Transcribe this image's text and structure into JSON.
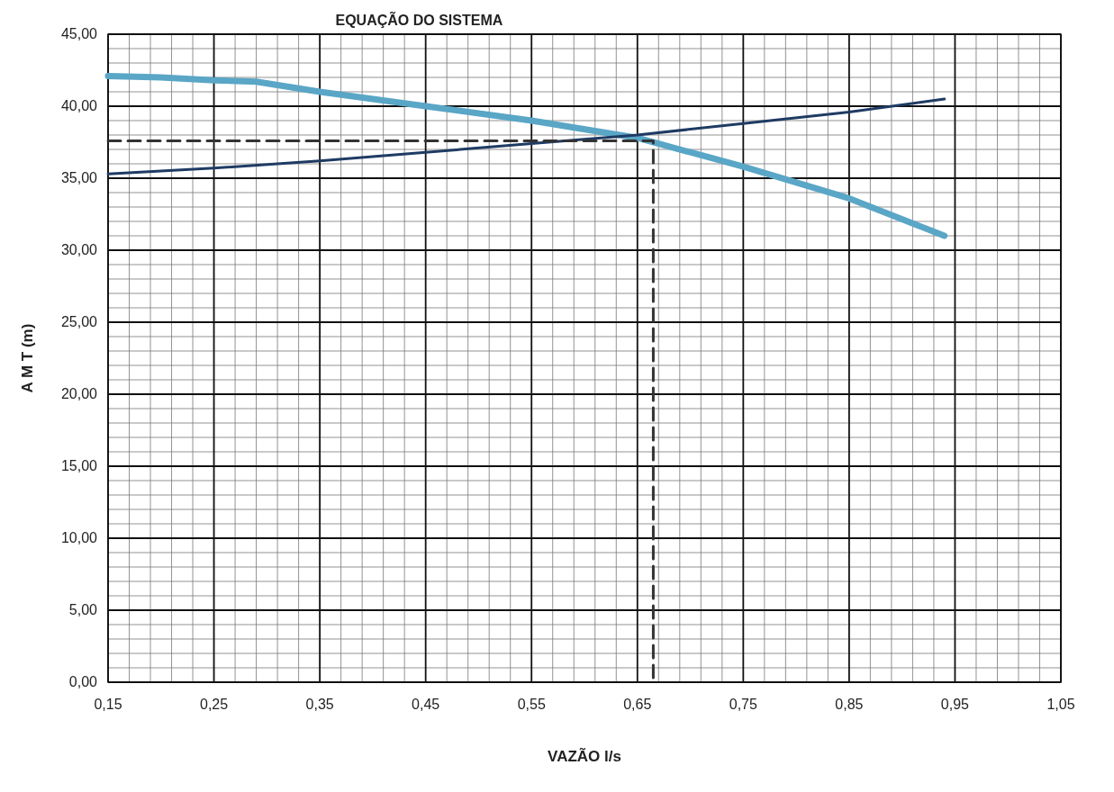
{
  "chart_data": {
    "type": "line",
    "title": "EQUAÇÃO DO SISTEMA",
    "xlabel": "VAZÃO l/s",
    "ylabel": "A M T (m)",
    "xlim": [
      0.15,
      1.05
    ],
    "xticks": [
      {
        "value": 0.15,
        "label": "0,15"
      },
      {
        "value": 0.25,
        "label": "0,25"
      },
      {
        "value": 0.35,
        "label": "0,35"
      },
      {
        "value": 0.45,
        "label": "0,45"
      },
      {
        "value": 0.55,
        "label": "0,55"
      },
      {
        "value": 0.65,
        "label": "0,65"
      },
      {
        "value": 0.75,
        "label": "0,75"
      },
      {
        "value": 0.85,
        "label": "0,85"
      },
      {
        "value": 0.95,
        "label": "0,95"
      },
      {
        "value": 1.05,
        "label": "1,05"
      }
    ],
    "ylim": [
      0,
      45
    ],
    "yticks": [
      {
        "value": 0,
        "label": "0,00"
      },
      {
        "value": 5,
        "label": "5,00"
      },
      {
        "value": 10,
        "label": "10,00"
      },
      {
        "value": 15,
        "label": "15,00"
      },
      {
        "value": 20,
        "label": "20,00"
      },
      {
        "value": 25,
        "label": "25,00"
      },
      {
        "value": 30,
        "label": "30,00"
      },
      {
        "value": 35,
        "label": "35,00"
      },
      {
        "value": 40,
        "label": "40,00"
      },
      {
        "value": 45,
        "label": "45,00"
      }
    ],
    "grid": true,
    "series": [
      {
        "color": "#5aa6c6",
        "x": [
          0.15,
          0.2,
          0.25,
          0.29,
          0.35,
          0.45,
          0.55,
          0.65,
          0.75,
          0.85,
          0.94
        ],
        "values": [
          42.1,
          42.0,
          41.8,
          41.7,
          41.0,
          40.0,
          39.0,
          37.8,
          35.8,
          33.6,
          31.0
        ]
      },
      {
        "color": "#1f3b63",
        "x": [
          0.15,
          0.25,
          0.35,
          0.45,
          0.55,
          0.65,
          0.75,
          0.85,
          0.94
        ],
        "values": [
          35.3,
          35.7,
          36.2,
          36.8,
          37.4,
          38.0,
          38.8,
          39.6,
          40.5
        ]
      },
      {
        "color": "#333333",
        "line_style": "dashed",
        "x": [
          0.15,
          0.665,
          0.665
        ],
        "values": [
          37.6,
          37.6,
          0
        ]
      }
    ]
  }
}
